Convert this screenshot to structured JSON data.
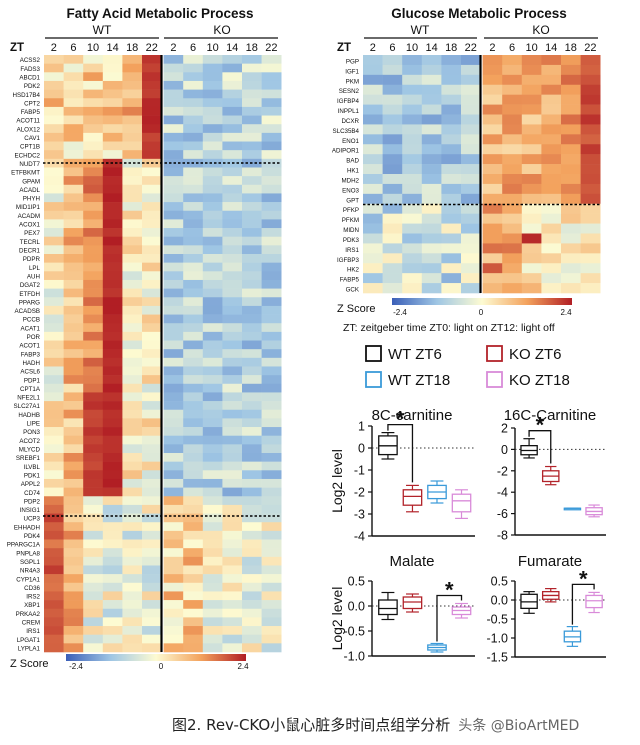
{
  "panel_titles": {
    "fatty": "Fatty Acid Metabolic Process",
    "glucose": "Glucose Metabolic Process"
  },
  "group_labels": {
    "wt": "WT",
    "ko": "KO",
    "zt": "ZT"
  },
  "timepoints": [
    "2",
    "6",
    "10",
    "14",
    "18",
    "22"
  ],
  "zscore": {
    "label": "Z Score",
    "min": "-2.4",
    "mid": "0",
    "max": "2.4"
  },
  "colors": {
    "low": "#3b5fb8",
    "mid": "#fdfbd2",
    "high": "#b11e24",
    "wt_zt6": "#111111",
    "wt_zt18": "#3a9ad9",
    "ko_zt6": "#b2232a",
    "ko_zt18": "#d98bd9"
  },
  "zt_note": "ZT:  zeitgeber time   ZT0:  light on   ZT12:  light off",
  "legend": [
    {
      "label": "WT ZT6",
      "color_key": "wt_zt6"
    },
    {
      "label": "KO ZT6",
      "color_key": "ko_zt6"
    },
    {
      "label": "WT ZT18",
      "color_key": "wt_zt18"
    },
    {
      "label": "KO ZT18",
      "color_key": "ko_zt18"
    }
  ],
  "fatty_genes": [
    "ACSS2",
    "FADS3",
    "ABCD1",
    "PDK2",
    "HSD17B4",
    "CPT2",
    "FABP5",
    "ACOT11",
    "ALOX12",
    "CAV1",
    "CPT1B",
    "ECHDC2",
    "NUDT7",
    "ETFBKMT",
    "GPAM",
    "ACADL",
    "PHYH",
    "MID1IP1",
    "ACADM",
    "ACOX1",
    "PEX7",
    "TECRL",
    "DECR1",
    "PDPR",
    "LPL",
    "AUH",
    "DGAT2",
    "ETFDH",
    "PPARG",
    "ACADSB",
    "PCCB",
    "ACAT1",
    "POR",
    "ACOT1",
    "FABP3",
    "HADH",
    "ACSL6",
    "PDP1",
    "CPT1A",
    "NFE2L1",
    "SLC27A1",
    "HADHB",
    "LIPE",
    "PON3",
    "ACOT2",
    "MLYCD",
    "SREBF1",
    "ILVBL",
    "PDK1",
    "APPL2",
    "CD74",
    "PDP2",
    "INSIG1",
    "UCP3",
    "EHHADH",
    "PDK4",
    "PPARGC1A",
    "PNPLA8",
    "SGPL1",
    "NR4A3",
    "CYP1A1",
    "CD36",
    "IRS2",
    "XBP1",
    "PRKAA2",
    "CREM",
    "IRS1",
    "LPGAT1",
    "LYPLA1"
  ],
  "glucose_genes": [
    "PGP",
    "IGF1",
    "PKM",
    "SESN2",
    "IGFBP4",
    "INPPL1",
    "DCXR",
    "SLC35B4",
    "ENO1",
    "ADIPOR1",
    "BAD",
    "HK1",
    "MDH2",
    "ENO3",
    "GPT",
    "PFKP",
    "PFKM",
    "MIDN",
    "PDK3",
    "IRS1",
    "IGFBP3",
    "HK2",
    "FABP5",
    "GCK"
  ],
  "chart_data": [
    {
      "type": "box",
      "title": "8C-carnitine",
      "ylabel": "Log2 level",
      "ylim": [
        -4,
        1
      ],
      "yticks": [
        1,
        0,
        -1,
        -2,
        -3,
        -4
      ],
      "groups": [
        {
          "name": "WT ZT6",
          "min": -0.5,
          "q1": -0.3,
          "median": 0.1,
          "q3": 0.55,
          "max": 0.7
        },
        {
          "name": "KO ZT6",
          "min": -2.9,
          "q1": -2.6,
          "median": -2.2,
          "q3": -1.9,
          "max": -1.7
        },
        {
          "name": "WT ZT18",
          "min": -2.5,
          "q1": -2.3,
          "median": -2.0,
          "q3": -1.7,
          "max": -1.5
        },
        {
          "name": "KO ZT18",
          "min": -3.2,
          "q1": -2.9,
          "median": -2.4,
          "q3": -2.1,
          "max": -1.9
        }
      ],
      "significance": {
        "text": "*",
        "between": [
          "WT ZT6",
          "KO ZT6"
        ]
      }
    },
    {
      "type": "box",
      "title": "16C-Carnitine",
      "ylabel": "",
      "ylim": [
        -8,
        2
      ],
      "yticks": [
        2,
        0,
        -2,
        -4,
        -6,
        -8
      ],
      "groups": [
        {
          "name": "WT ZT6",
          "min": -0.8,
          "q1": -0.5,
          "median": -0.1,
          "q3": 0.35,
          "max": 1.0
        },
        {
          "name": "KO ZT6",
          "min": -3.3,
          "q1": -3.0,
          "median": -2.5,
          "q3": -2.0,
          "max": -1.6
        },
        {
          "name": "WT ZT18",
          "min": -5.5,
          "q1": -5.5,
          "median": -5.5,
          "q3": -5.5,
          "max": -5.5
        },
        {
          "name": "KO ZT18",
          "min": -6.3,
          "q1": -6.1,
          "median": -5.8,
          "q3": -5.45,
          "max": -5.2
        }
      ],
      "significance": {
        "text": "*",
        "between": [
          "WT ZT6",
          "KO ZT6"
        ]
      }
    },
    {
      "type": "box",
      "title": "Malate",
      "ylabel": "Log2 level",
      "ylim": [
        -1.0,
        0.5
      ],
      "yticks": [
        0.5,
        0.0,
        -0.5,
        -1.0
      ],
      "groups": [
        {
          "name": "WT ZT6",
          "min": -0.27,
          "q1": -0.17,
          "median": -0.05,
          "q3": 0.12,
          "max": 0.27
        },
        {
          "name": "KO ZT6",
          "min": -0.12,
          "q1": -0.05,
          "median": 0.08,
          "q3": 0.18,
          "max": 0.24
        },
        {
          "name": "WT ZT18",
          "min": -0.92,
          "q1": -0.88,
          "median": -0.83,
          "q3": -0.78,
          "max": -0.75
        },
        {
          "name": "KO ZT18",
          "min": -0.24,
          "q1": -0.17,
          "median": -0.09,
          "q3": -0.02,
          "max": 0.05
        }
      ],
      "significance": {
        "text": "*",
        "between": [
          "WT ZT18",
          "KO ZT18"
        ]
      }
    },
    {
      "type": "box",
      "title": "Fumarate",
      "ylabel": "",
      "ylim": [
        -1.5,
        0.5
      ],
      "yticks": [
        0.5,
        0.0,
        -0.5,
        -1.0,
        -1.5
      ],
      "groups": [
        {
          "name": "WT ZT6",
          "min": -0.35,
          "q1": -0.22,
          "median": -0.05,
          "q3": 0.15,
          "max": 0.22
        },
        {
          "name": "KO ZT6",
          "min": -0.05,
          "q1": 0.02,
          "median": 0.12,
          "q3": 0.22,
          "max": 0.3
        },
        {
          "name": "WT ZT18",
          "min": -1.22,
          "q1": -1.1,
          "median": -0.97,
          "q3": -0.82,
          "max": -0.7
        },
        {
          "name": "KO ZT18",
          "min": -0.33,
          "q1": -0.2,
          "median": -0.02,
          "q3": 0.12,
          "max": 0.2
        }
      ],
      "significance": {
        "text": "*",
        "between": [
          "WT ZT18",
          "KO ZT18"
        ]
      }
    }
  ],
  "caption": "图2. Rev-CKO小鼠心脏多时间点组学分析",
  "watermark": "头条 @BioArtMED"
}
